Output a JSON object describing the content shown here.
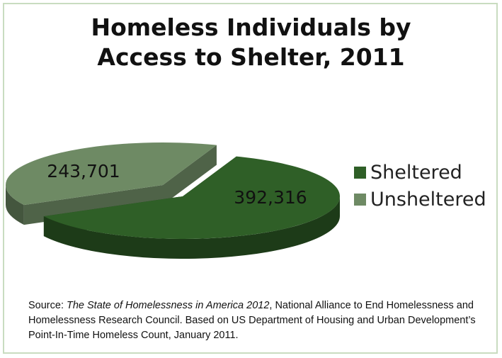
{
  "chart_data": {
    "type": "pie",
    "title_lines": [
      "Homeless Individuals by",
      "Access to Shelter, 2011"
    ],
    "categories": [
      "Sheltered",
      "Unsheltered"
    ],
    "values": [
      392316,
      243701
    ],
    "data_labels": [
      "392,316",
      "243,701"
    ],
    "colors": {
      "Sheltered": "#2f5f27",
      "Unsheltered": "#6e8a64"
    },
    "legend_position": "right",
    "exploded": "Unsheltered",
    "style": "3d"
  },
  "source": {
    "prefix": "Source: ",
    "publication": "The State of Homelessness in America 2012",
    "rest": ", National Alliance to End Homelessness and Homelessness Research Council. Based on US Department of Housing and Urban Development’s  Point-In-Time Homeless Count, January 2011."
  }
}
